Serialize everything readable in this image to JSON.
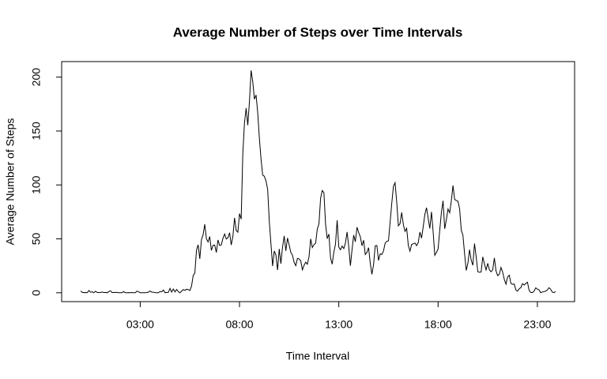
{
  "chart_data": {
    "type": "line",
    "title": "Average Number of Steps over Time Intervals",
    "x_label": "Time Interval",
    "y_label": "Average Number of Steps",
    "color": "#000000",
    "x": [
      0,
      5,
      10,
      15,
      20,
      25,
      30,
      35,
      40,
      45,
      50,
      55,
      60,
      65,
      70,
      75,
      80,
      85,
      90,
      95,
      100,
      105,
      110,
      115,
      120,
      125,
      130,
      135,
      140,
      145,
      150,
      155,
      160,
      165,
      170,
      175,
      180,
      185,
      190,
      195,
      200,
      205,
      210,
      215,
      220,
      225,
      230,
      235,
      240,
      245,
      250,
      255,
      260,
      265,
      270,
      275,
      280,
      285,
      290,
      295,
      300,
      305,
      310,
      315,
      320,
      325,
      330,
      335,
      340,
      345,
      350,
      355,
      360,
      365,
      370,
      375,
      380,
      385,
      390,
      395,
      400,
      405,
      410,
      415,
      420,
      425,
      430,
      435,
      440,
      445,
      450,
      455,
      460,
      465,
      470,
      475,
      480,
      485,
      490,
      495,
      500,
      505,
      510,
      515,
      520,
      525,
      530,
      535,
      540,
      545,
      550,
      555,
      560,
      565,
      570,
      575,
      580,
      585,
      590,
      595,
      600,
      605,
      610,
      615,
      620,
      625,
      630,
      635,
      640,
      645,
      650,
      655,
      660,
      665,
      670,
      675,
      680,
      685,
      690,
      695,
      700,
      705,
      710,
      715,
      720,
      725,
      730,
      735,
      740,
      745,
      750,
      755,
      760,
      765,
      770,
      775,
      780,
      785,
      790,
      795,
      800,
      805,
      810,
      815,
      820,
      825,
      830,
      835,
      840,
      845,
      850,
      855,
      860,
      865,
      870,
      875,
      880,
      885,
      890,
      895,
      900,
      905,
      910,
      915,
      920,
      925,
      930,
      935,
      940,
      945,
      950,
      955,
      960,
      965,
      970,
      975,
      980,
      985,
      990,
      995,
      1000,
      1005,
      1010,
      1015,
      1020,
      1025,
      1030,
      1035,
      1040,
      1045,
      1050,
      1055,
      1060,
      1065,
      1070,
      1075,
      1080,
      1085,
      1090,
      1095,
      1100,
      1105,
      1110,
      1115,
      1120,
      1125,
      1130,
      1135,
      1140,
      1145,
      1150,
      1155,
      1160,
      1165,
      1170,
      1175,
      1180,
      1185,
      1190,
      1195,
      1200,
      1205,
      1210,
      1215,
      1220,
      1225,
      1230,
      1235,
      1240,
      1245,
      1250,
      1255,
      1260,
      1265,
      1270,
      1275,
      1280,
      1285,
      1290,
      1295,
      1300,
      1305,
      1310,
      1315,
      1320,
      1325,
      1330,
      1335,
      1340,
      1345,
      1350,
      1355,
      1360,
      1365,
      1370,
      1375,
      1380,
      1385,
      1390,
      1395,
      1400,
      1405,
      1410,
      1415,
      1420,
      1425,
      1430,
      1435
    ],
    "values": [
      1.7,
      0.3,
      0.1,
      0.2,
      0.1,
      2.1,
      0.5,
      0.9,
      0,
      1.5,
      0.3,
      0.1,
      0.3,
      0.7,
      0.2,
      0.3,
      0,
      1.1,
      1.8,
      0.2,
      0.2,
      0.4,
      0.3,
      0,
      0,
      0,
      1.1,
      0,
      0,
      0.1,
      0,
      0.2,
      0,
      0,
      1.5,
      0.9,
      0,
      0,
      0,
      0,
      0.2,
      0.6,
      1.6,
      0.6,
      0.5,
      0.1,
      0,
      0,
      1.2,
      0.9,
      2.6,
      0,
      0.3,
      0.4,
      4.1,
      0.7,
      3.5,
      0.8,
      3.1,
      1.1,
      0,
      1.6,
      3,
      2.2,
      3.3,
      3,
      2.1,
      6.1,
      16,
      18.3,
      39.5,
      44.5,
      31.5,
      49.3,
      53.8,
      63.5,
      50,
      47.1,
      52.2,
      39.3,
      44,
      44.2,
      37.4,
      49,
      43.8,
      44.4,
      50.5,
      54.5,
      49.9,
      51,
      55.7,
      44.3,
      52.3,
      69.5,
      57.8,
      56.2,
      73.4,
      68.2,
      129.4,
      157.5,
      171.2,
      155.4,
      177.3,
      206.2,
      195.9,
      179.6,
      183.4,
      167,
      143.5,
      124,
      109.1,
      108.1,
      103.7,
      96,
      66.2,
      45.2,
      24.8,
      38.8,
      35,
      21.1,
      40.6,
      27,
      42.4,
      52.7,
      38.9,
      50.8,
      44.3,
      37.4,
      34.7,
      28.3,
      25.1,
      31.9,
      31.4,
      29.7,
      21.3,
      25.5,
      28.4,
      26.5,
      33.4,
      50,
      42,
      44.6,
      46,
      59.2,
      63.9,
      87.7,
      94.8,
      92.8,
      63.4,
      50.2,
      54.5,
      32.4,
      26.5,
      37.7,
      45.1,
      67.3,
      42.3,
      39.9,
      43.3,
      41,
      46.2,
      56.4,
      42.8,
      25.1,
      40,
      53.5,
      47.3,
      60.8,
      55.8,
      52,
      43.6,
      48.7,
      35.5,
      37.5,
      41.8,
      27.5,
      17.1,
      26.1,
      43.6,
      43.8,
      30,
      36.1,
      35.5,
      38.8,
      46,
      47.8,
      48.1,
      65.3,
      82.9,
      98.7,
      102.1,
      84,
      62.1,
      64.1,
      74.5,
      63.2,
      56.9,
      59.8,
      43.9,
      38.6,
      44.7,
      45.5,
      46.2,
      43.7,
      46.6,
      56.3,
      50.7,
      61.2,
      72.7,
      78.9,
      68.9,
      59.7,
      75.1,
      56.5,
      34.8,
      37.5,
      40.7,
      58,
      74.7,
      85.3,
      59.3,
      67.8,
      77.7,
      74.2,
      85.3,
      99.5,
      86.6,
      85.6,
      84.9,
      77.8,
      58,
      53.4,
      36.3,
      20.7,
      27.4,
      40,
      30.2,
      25.5,
      45.7,
      33.5,
      19.6,
      19,
      19.3,
      33.3,
      26.8,
      21.2,
      27.3,
      21.3,
      19.5,
      21.3,
      32.3,
      20.2,
      15.9,
      17.2,
      23.5,
      19.2,
      12.5,
      8,
      14.7,
      16.3,
      8.7,
      7.8,
      8.1,
      2.6,
      1.5,
      3.7,
      4.8,
      8.5,
      7.1,
      8.7,
      9.8,
      2.2,
      0.3,
      0.1,
      1.6,
      4.6,
      3.3,
      2.8,
      0,
      0.8,
      1,
      1.6,
      2.6,
      4.7,
      3.3,
      0.6,
      0.2,
      1.1
    ],
    "xlim": [
      -57.4,
      1492.4
    ],
    "xticks": [
      {
        "value": 180,
        "label": "03:00"
      },
      {
        "value": 480,
        "label": "08:00"
      },
      {
        "value": 780,
        "label": "13:00"
      },
      {
        "value": 1080,
        "label": "18:00"
      },
      {
        "value": 1380,
        "label": "23:00"
      }
    ],
    "ylim": [
      -8.2,
      214.4
    ],
    "yticks": [
      0,
      50,
      100,
      150,
      200
    ]
  }
}
